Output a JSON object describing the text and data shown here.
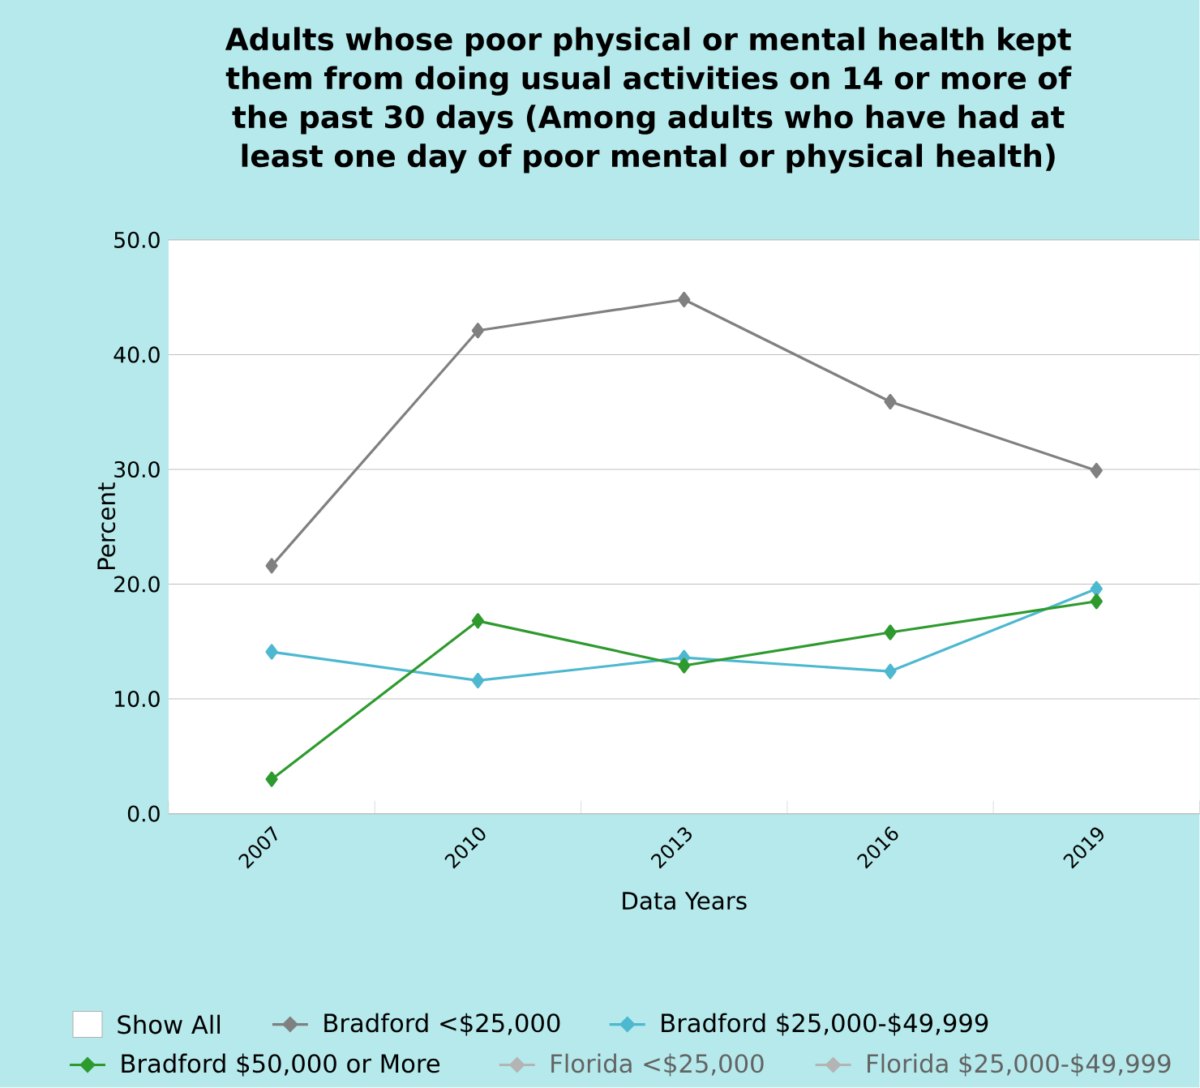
{
  "chart_data": {
    "type": "line",
    "title": "Adults whose poor physical or mental health kept them from doing usual activities on 14 or more of the past 30 days (Among adults who have had at least one day of poor mental or physical health)",
    "xlabel": "Data Years",
    "ylabel": "Percent",
    "categories": [
      "2007",
      "2010",
      "2013",
      "2016",
      "2019"
    ],
    "series": [
      {
        "name": "Bradford <$25,000",
        "color": "#808080",
        "values": [
          21.6,
          42.1,
          44.8,
          35.9,
          29.9
        ]
      },
      {
        "name": "Bradford $25,000-$49,999",
        "color": "#4db8d0",
        "values": [
          14.1,
          11.6,
          13.6,
          12.4,
          19.6
        ]
      },
      {
        "name": "Bradford $50,000 or More",
        "color": "#2e9a2e",
        "values": [
          3.0,
          16.8,
          12.9,
          15.8,
          18.5
        ]
      },
      {
        "name": "Florida <$25,000",
        "color": "#b4b4b4",
        "values": [
          null,
          null,
          null,
          null,
          null
        ]
      },
      {
        "name": "Florida $25,000-$49,999",
        "color": "#b4b4b4",
        "values": [
          null,
          null,
          null,
          null,
          null
        ]
      }
    ],
    "ylim": [
      0,
      50
    ],
    "yticks": [
      {
        "value": 0,
        "label": "0.0"
      },
      {
        "value": 10,
        "label": "10.0"
      },
      {
        "value": 20,
        "label": "20.0"
      },
      {
        "value": 30,
        "label": "30.0"
      },
      {
        "value": 40,
        "label": "40.0"
      },
      {
        "value": 50,
        "label": "50.0"
      }
    ],
    "grid": "y",
    "legend": "bottom",
    "marker": "diamond",
    "line_style": "solid",
    "annotations": [
      "Show All"
    ]
  }
}
